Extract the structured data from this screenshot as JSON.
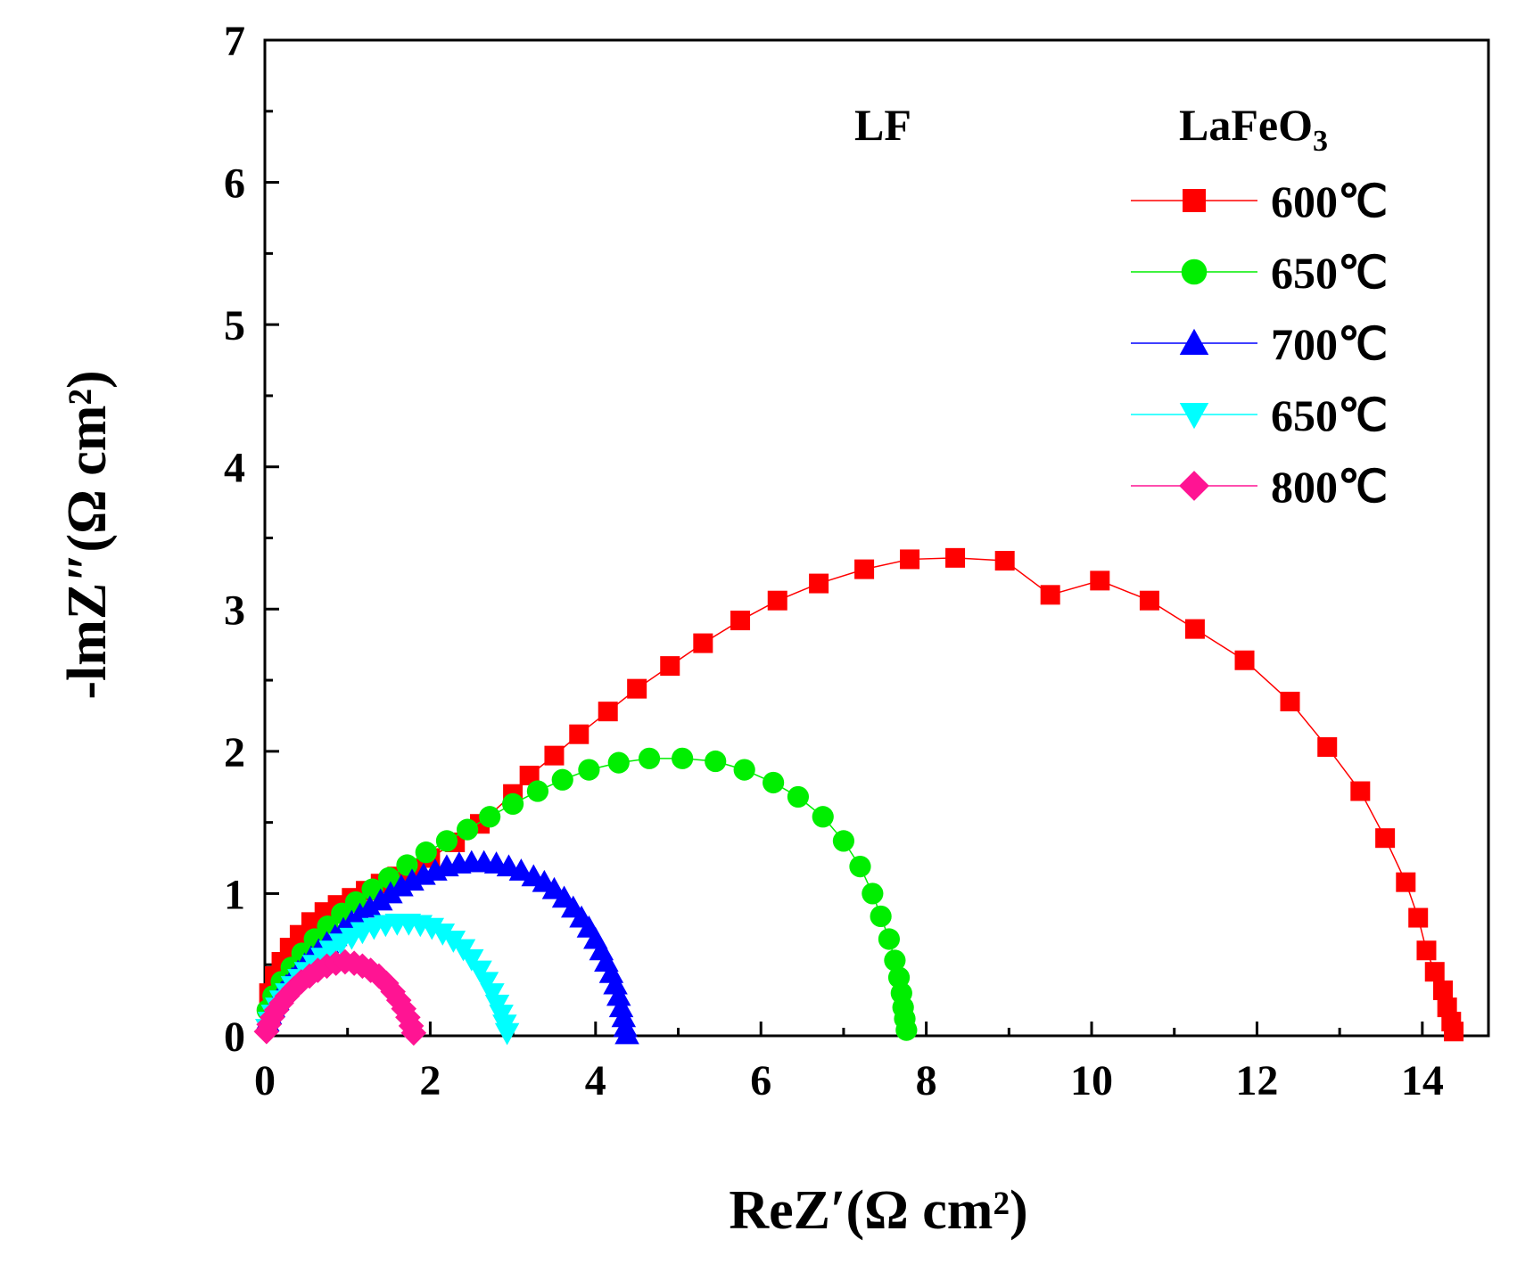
{
  "chart_data": {
    "type": "scatter",
    "title": "",
    "xlabel": "ReZ′(Ω cm²)",
    "ylabel": "-lmZ″(Ω cm²)",
    "xlim": [
      0,
      14.8
    ],
    "ylim": [
      0,
      7
    ],
    "xticks": [
      0,
      2,
      4,
      6,
      8,
      10,
      12,
      14
    ],
    "yticks": [
      0,
      1,
      2,
      3,
      4,
      5,
      6,
      7
    ],
    "xtick_labels": [
      "0",
      "2",
      "4",
      "6",
      "8",
      "10",
      "12",
      "14"
    ],
    "ytick_labels": [
      "0",
      "1",
      "2",
      "3",
      "4",
      "5",
      "6",
      "7"
    ],
    "grid": false,
    "legend_position": "top-right",
    "annotations": [
      "LF"
    ],
    "legend_title": {
      "main": "LaFeO",
      "sub": "3"
    },
    "series": [
      {
        "name": "600℃",
        "color": "#ff0000",
        "marker": "square",
        "connect": true,
        "points": [
          [
            0.05,
            0.3
          ],
          [
            0.12,
            0.42
          ],
          [
            0.2,
            0.52
          ],
          [
            0.3,
            0.62
          ],
          [
            0.42,
            0.71
          ],
          [
            0.56,
            0.8
          ],
          [
            0.72,
            0.87
          ],
          [
            0.88,
            0.92
          ],
          [
            1.05,
            0.97
          ],
          [
            1.22,
            1.02
          ],
          [
            1.4,
            1.07
          ],
          [
            1.6,
            1.12
          ],
          [
            1.8,
            1.18
          ],
          [
            2.0,
            1.25
          ],
          [
            2.3,
            1.36
          ],
          [
            2.6,
            1.49
          ],
          [
            3.0,
            1.7
          ],
          [
            3.2,
            1.83
          ],
          [
            3.5,
            1.97
          ],
          [
            3.8,
            2.12
          ],
          [
            4.15,
            2.28
          ],
          [
            4.5,
            2.44
          ],
          [
            4.9,
            2.6
          ],
          [
            5.3,
            2.76
          ],
          [
            5.75,
            2.92
          ],
          [
            6.2,
            3.06
          ],
          [
            6.7,
            3.18
          ],
          [
            7.25,
            3.28
          ],
          [
            7.8,
            3.35
          ],
          [
            8.35,
            3.36
          ],
          [
            8.95,
            3.34
          ],
          [
            9.5,
            3.1
          ],
          [
            10.1,
            3.2
          ],
          [
            10.7,
            3.06
          ],
          [
            11.25,
            2.86
          ],
          [
            11.85,
            2.64
          ],
          [
            12.4,
            2.35
          ],
          [
            12.85,
            2.03
          ],
          [
            13.25,
            1.72
          ],
          [
            13.55,
            1.39
          ],
          [
            13.8,
            1.08
          ],
          [
            13.95,
            0.83
          ],
          [
            14.05,
            0.6
          ],
          [
            14.15,
            0.45
          ],
          [
            14.25,
            0.32
          ],
          [
            14.3,
            0.2
          ],
          [
            14.35,
            0.1
          ],
          [
            14.38,
            0.03
          ]
        ]
      },
      {
        "name": "650℃",
        "color": "#00ee00",
        "marker": "circle",
        "connect": true,
        "points": [
          [
            0.03,
            0.18
          ],
          [
            0.1,
            0.28
          ],
          [
            0.2,
            0.38
          ],
          [
            0.32,
            0.48
          ],
          [
            0.45,
            0.58
          ],
          [
            0.6,
            0.68
          ],
          [
            0.76,
            0.77
          ],
          [
            0.93,
            0.86
          ],
          [
            1.1,
            0.94
          ],
          [
            1.3,
            1.03
          ],
          [
            1.5,
            1.11
          ],
          [
            1.72,
            1.2
          ],
          [
            1.95,
            1.29
          ],
          [
            2.2,
            1.37
          ],
          [
            2.45,
            1.45
          ],
          [
            2.72,
            1.54
          ],
          [
            3.0,
            1.63
          ],
          [
            3.3,
            1.72
          ],
          [
            3.6,
            1.8
          ],
          [
            3.92,
            1.87
          ],
          [
            4.28,
            1.92
          ],
          [
            4.65,
            1.95
          ],
          [
            5.05,
            1.95
          ],
          [
            5.45,
            1.93
          ],
          [
            5.8,
            1.87
          ],
          [
            6.15,
            1.78
          ],
          [
            6.45,
            1.68
          ],
          [
            6.75,
            1.54
          ],
          [
            7.0,
            1.37
          ],
          [
            7.2,
            1.19
          ],
          [
            7.35,
            1.0
          ],
          [
            7.45,
            0.84
          ],
          [
            7.55,
            0.68
          ],
          [
            7.62,
            0.53
          ],
          [
            7.67,
            0.41
          ],
          [
            7.7,
            0.3
          ],
          [
            7.72,
            0.2
          ],
          [
            7.74,
            0.12
          ],
          [
            7.76,
            0.04
          ]
        ]
      },
      {
        "name": "700℃",
        "color": "#0000ff",
        "marker": "triangle-up",
        "connect": false,
        "points": [
          [
            0.03,
            0.1
          ],
          [
            0.06,
            0.15
          ],
          [
            0.1,
            0.2
          ],
          [
            0.15,
            0.25
          ],
          [
            0.2,
            0.3
          ],
          [
            0.26,
            0.35
          ],
          [
            0.33,
            0.4
          ],
          [
            0.4,
            0.45
          ],
          [
            0.48,
            0.5
          ],
          [
            0.56,
            0.55
          ],
          [
            0.65,
            0.6
          ],
          [
            0.75,
            0.65
          ],
          [
            0.85,
            0.7
          ],
          [
            0.95,
            0.75
          ],
          [
            1.05,
            0.8
          ],
          [
            1.15,
            0.85
          ],
          [
            1.27,
            0.9
          ],
          [
            1.4,
            0.95
          ],
          [
            1.52,
            1.0
          ],
          [
            1.65,
            1.05
          ],
          [
            1.78,
            1.09
          ],
          [
            1.92,
            1.13
          ],
          [
            2.06,
            1.16
          ],
          [
            2.2,
            1.19
          ],
          [
            2.35,
            1.21
          ],
          [
            2.5,
            1.22
          ],
          [
            2.65,
            1.22
          ],
          [
            2.8,
            1.21
          ],
          [
            2.95,
            1.19
          ],
          [
            3.1,
            1.16
          ],
          [
            3.25,
            1.12
          ],
          [
            3.38,
            1.08
          ],
          [
            3.5,
            1.03
          ],
          [
            3.62,
            0.97
          ],
          [
            3.73,
            0.9
          ],
          [
            3.83,
            0.83
          ],
          [
            3.92,
            0.76
          ],
          [
            4.0,
            0.68
          ],
          [
            4.07,
            0.6
          ],
          [
            4.13,
            0.52
          ],
          [
            4.19,
            0.44
          ],
          [
            4.24,
            0.36
          ],
          [
            4.28,
            0.28
          ],
          [
            4.31,
            0.2
          ],
          [
            4.34,
            0.13
          ],
          [
            4.36,
            0.06
          ],
          [
            4.38,
            0.01
          ]
        ]
      },
      {
        "name": "650℃",
        "color": "#00ffff",
        "marker": "triangle-down",
        "connect": false,
        "points": [
          [
            0.03,
            0.05
          ],
          [
            0.06,
            0.1
          ],
          [
            0.1,
            0.15
          ],
          [
            0.15,
            0.2
          ],
          [
            0.2,
            0.25
          ],
          [
            0.27,
            0.3
          ],
          [
            0.34,
            0.35
          ],
          [
            0.42,
            0.4
          ],
          [
            0.5,
            0.45
          ],
          [
            0.6,
            0.5
          ],
          [
            0.7,
            0.55
          ],
          [
            0.8,
            0.6
          ],
          [
            0.92,
            0.65
          ],
          [
            1.05,
            0.69
          ],
          [
            1.18,
            0.73
          ],
          [
            1.32,
            0.76
          ],
          [
            1.46,
            0.78
          ],
          [
            1.6,
            0.79
          ],
          [
            1.74,
            0.79
          ],
          [
            1.88,
            0.78
          ],
          [
            2.02,
            0.76
          ],
          [
            2.15,
            0.72
          ],
          [
            2.28,
            0.67
          ],
          [
            2.4,
            0.61
          ],
          [
            2.5,
            0.54
          ],
          [
            2.6,
            0.46
          ],
          [
            2.68,
            0.38
          ],
          [
            2.75,
            0.3
          ],
          [
            2.81,
            0.22
          ],
          [
            2.86,
            0.15
          ],
          [
            2.9,
            0.08
          ],
          [
            2.93,
            0.02
          ]
        ]
      },
      {
        "name": "800℃",
        "color": "#ff1493",
        "marker": "diamond",
        "connect": false,
        "points": [
          [
            0.02,
            0.03
          ],
          [
            0.05,
            0.08
          ],
          [
            0.09,
            0.13
          ],
          [
            0.14,
            0.18
          ],
          [
            0.2,
            0.23
          ],
          [
            0.27,
            0.28
          ],
          [
            0.35,
            0.33
          ],
          [
            0.44,
            0.38
          ],
          [
            0.54,
            0.42
          ],
          [
            0.64,
            0.46
          ],
          [
            0.75,
            0.49
          ],
          [
            0.86,
            0.51
          ],
          [
            0.97,
            0.52
          ],
          [
            1.08,
            0.51
          ],
          [
            1.18,
            0.49
          ],
          [
            1.28,
            0.46
          ],
          [
            1.38,
            0.42
          ],
          [
            1.47,
            0.37
          ],
          [
            1.55,
            0.31
          ],
          [
            1.62,
            0.25
          ],
          [
            1.68,
            0.19
          ],
          [
            1.73,
            0.13
          ],
          [
            1.77,
            0.07
          ],
          [
            1.8,
            0.02
          ]
        ]
      }
    ]
  }
}
